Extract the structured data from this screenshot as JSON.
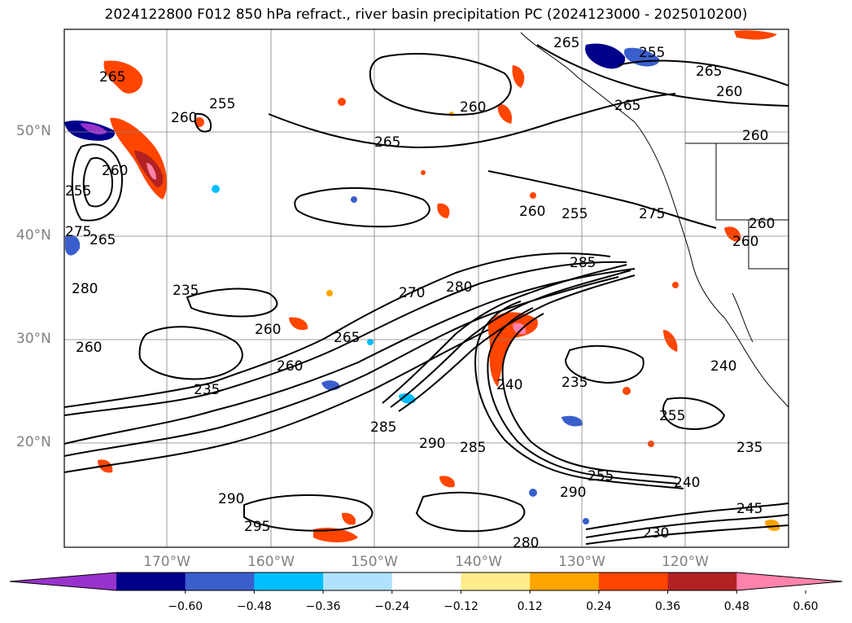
{
  "title": "2024122800 F012 850 hPa refract., river basin precipitation PC (2024123000 - 2025010200)",
  "lat_labels": [
    "50°N",
    "40°N",
    "30°N",
    "20°N"
  ],
  "lon_labels": [
    "170°W",
    "160°W",
    "150°W",
    "140°W",
    "130°W",
    "120°W"
  ],
  "colorbar": {
    "colors": [
      "#9932cc",
      "#00008b",
      "#3a5fcd",
      "#00bfff",
      "#b0e2ff",
      "#ffffff",
      "#ffec8b",
      "#ffa500",
      "#ff4500",
      "#b22222",
      "#ff82ab"
    ],
    "ticks": [
      "−0.60",
      "−0.48",
      "−0.36",
      "−0.24",
      "−0.12",
      "0.12",
      "0.24",
      "0.36",
      "0.48",
      "0.60"
    ]
  },
  "contour_labels": [
    "265",
    "255",
    "265",
    "260",
    "265",
    "260",
    "255",
    "260",
    "260",
    "265",
    "265",
    "255",
    "260",
    "275",
    "280",
    "260",
    "270",
    "280",
    "275",
    "285",
    "255",
    "260",
    "235",
    "260",
    "265",
    "260",
    "240",
    "235",
    "235",
    "255",
    "285",
    "290",
    "285",
    "240",
    "255",
    "235",
    "240",
    "290",
    "245",
    "295",
    "230",
    "290",
    "280",
    "260",
    "265",
    "260"
  ]
}
